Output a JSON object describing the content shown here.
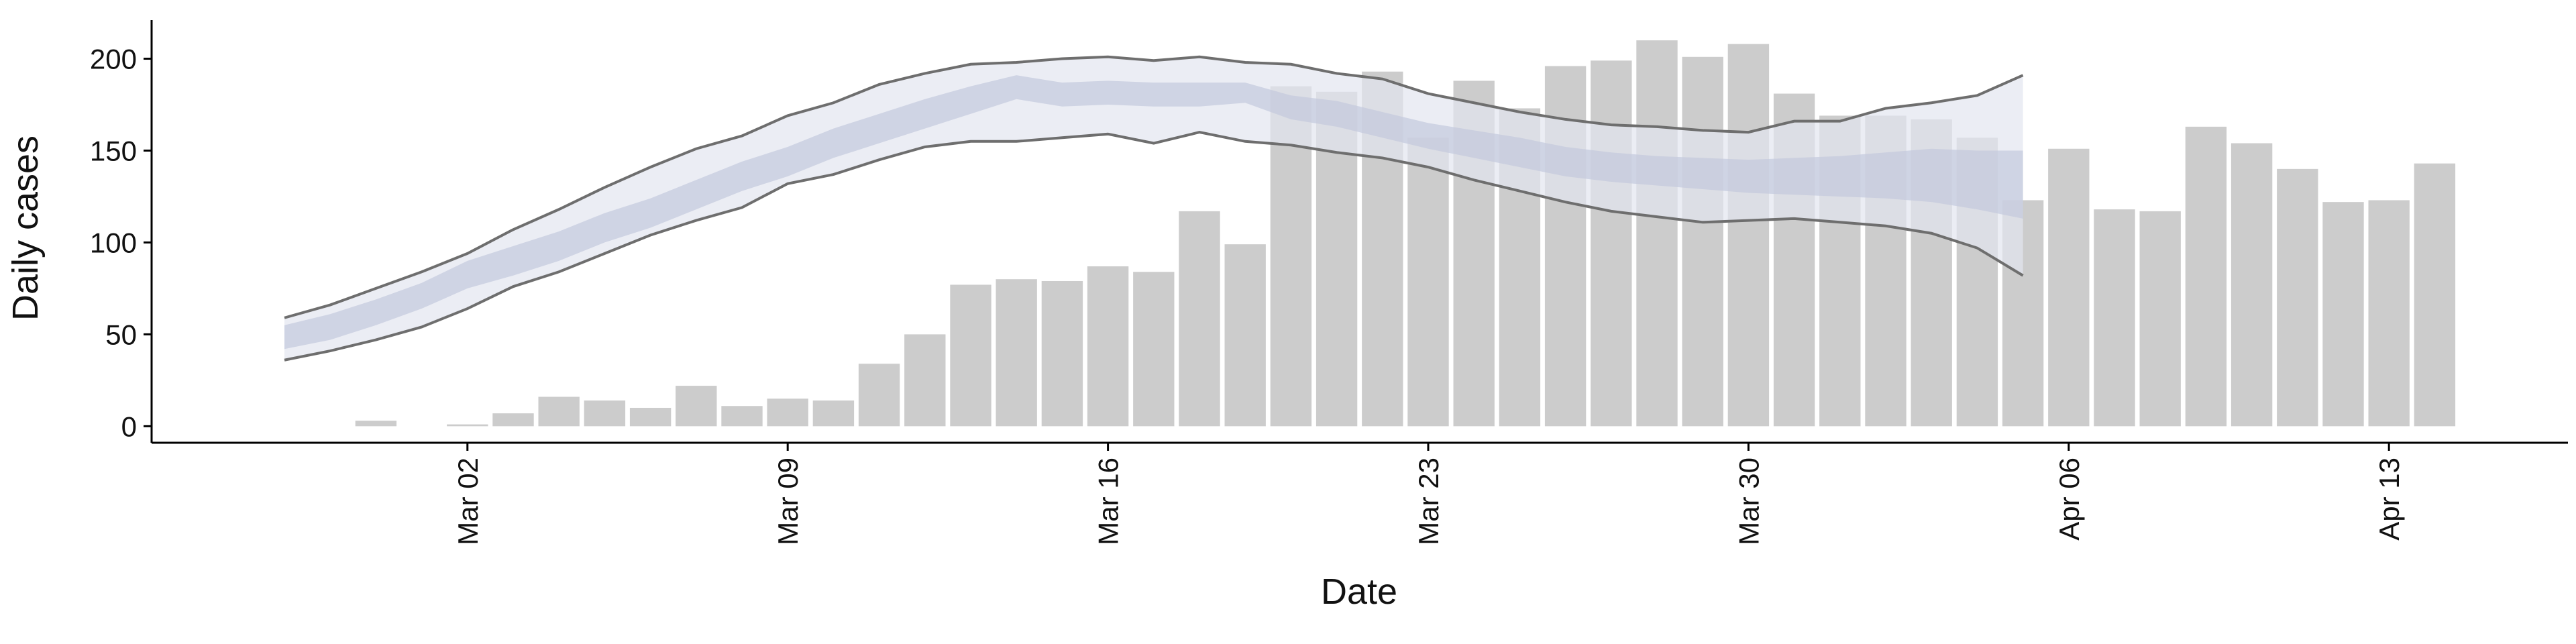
{
  "chart_data": {
    "type": "bar",
    "x_label": "Date",
    "y_label": "Daily cases",
    "categories": [
      null,
      null,
      null,
      null,
      "Mar 02",
      null,
      null,
      null,
      null,
      null,
      null,
      "Mar 09",
      null,
      null,
      null,
      null,
      null,
      null,
      "Mar 16",
      null,
      null,
      null,
      null,
      null,
      null,
      "Mar 23",
      null,
      null,
      null,
      null,
      null,
      null,
      "Mar 30",
      null,
      null,
      null,
      null,
      null,
      null,
      "Apr 06",
      null,
      null,
      null,
      null,
      null,
      null,
      "Apr 13",
      null
    ],
    "values": [
      null,
      null,
      3,
      null,
      1,
      7,
      16,
      14,
      10,
      22,
      11,
      15,
      14,
      34,
      50,
      77,
      80,
      79,
      87,
      84,
      117,
      99,
      185,
      182,
      193,
      157,
      188,
      173,
      196,
      199,
      210,
      201,
      208,
      181,
      169,
      169,
      167,
      157,
      123,
      151,
      118,
      117,
      163,
      154,
      140,
      122,
      123,
      143
    ],
    "color": "#cccccc",
    "bands": [
      {
        "color": "#e3e6ef",
        "line_color": "#6e6e6e",
        "upper": [
          59,
          66,
          75,
          84,
          94,
          107,
          118,
          130,
          141,
          151,
          158,
          169,
          176,
          186,
          192,
          197,
          198,
          200,
          201,
          199,
          201,
          198,
          197,
          192,
          189,
          181,
          176,
          171,
          167,
          164,
          163,
          161,
          160,
          166,
          166,
          173,
          176,
          180,
          191,
          null,
          null,
          null,
          null,
          null,
          null,
          null,
          null,
          null
        ],
        "lower": [
          36,
          41,
          47,
          54,
          64,
          76,
          84,
          94,
          104,
          112,
          119,
          132,
          137,
          145,
          152,
          155,
          155,
          157,
          159,
          154,
          160,
          155,
          153,
          149,
          146,
          141,
          134,
          128,
          122,
          117,
          114,
          111,
          112,
          113,
          111,
          109,
          105,
          97,
          82,
          null,
          null,
          null,
          null,
          null,
          null,
          null,
          null,
          null
        ]
      },
      {
        "color": "#c3c9dd",
        "upper": [
          55,
          61,
          69,
          78,
          90,
          98,
          106,
          116,
          124,
          134,
          144,
          152,
          162,
          170,
          178,
          185,
          191,
          187,
          188,
          187,
          187,
          187,
          180,
          177,
          171,
          165,
          161,
          157,
          152,
          149,
          147,
          146,
          145,
          146,
          147,
          149,
          151,
          150,
          150,
          null,
          null,
          null,
          null,
          null,
          null,
          null,
          null,
          null
        ],
        "lower": [
          42,
          47,
          55,
          64,
          75,
          82,
          90,
          100,
          108,
          118,
          128,
          136,
          146,
          154,
          162,
          170,
          178,
          174,
          175,
          174,
          174,
          176,
          167,
          163,
          157,
          151,
          146,
          141,
          136,
          133,
          131,
          129,
          127,
          126,
          125,
          124,
          122,
          118,
          113,
          null,
          null,
          null,
          null,
          null,
          null,
          null,
          null,
          null
        ]
      }
    ],
    "ylim": [
      -9,
      221
    ],
    "yticks": [
      0,
      50,
      100,
      150,
      200
    ]
  }
}
